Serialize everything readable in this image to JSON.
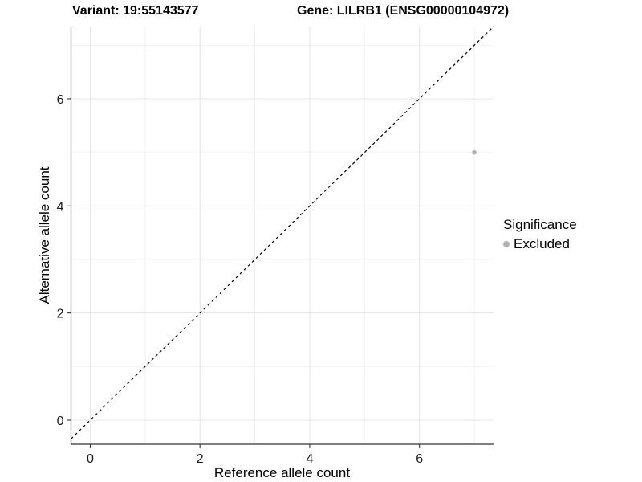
{
  "titles": {
    "variant": "Variant: 19:55143577",
    "gene": "Gene: LILRB1 (ENSG00000104972)"
  },
  "chart_data": {
    "type": "scatter",
    "xlabel": "Reference allele count",
    "ylabel": "Alternative allele count",
    "xlim": [
      -0.35,
      7.35
    ],
    "ylim": [
      -0.45,
      7.35
    ],
    "xticks": [
      0,
      2,
      4,
      6
    ],
    "yticks": [
      0,
      2,
      4,
      6
    ],
    "xminor": [
      1,
      3,
      5,
      7
    ],
    "yminor": [
      1,
      3,
      5,
      7
    ],
    "grid": "major-and-minor",
    "identity_line": {
      "type": "abline",
      "slope": 1,
      "intercept": 0,
      "style": "dashed",
      "color": "#000000"
    },
    "series": [
      {
        "name": "Excluded",
        "color": "#b1b1b1",
        "points": [
          {
            "x": 7,
            "y": 5
          }
        ]
      }
    ],
    "legend": {
      "title": "Significance",
      "position": "right",
      "items": [
        {
          "label": "Excluded",
          "color": "#b1b1b1"
        }
      ]
    }
  },
  "colors": {
    "background": "#ffffff",
    "grid_major": "#e4e4e4",
    "grid_minor": "#f0f0f0",
    "axis_line": "#333333",
    "tick_mark": "#333333",
    "tick_label": "#1a1a1a",
    "title_text": "#000000"
  }
}
